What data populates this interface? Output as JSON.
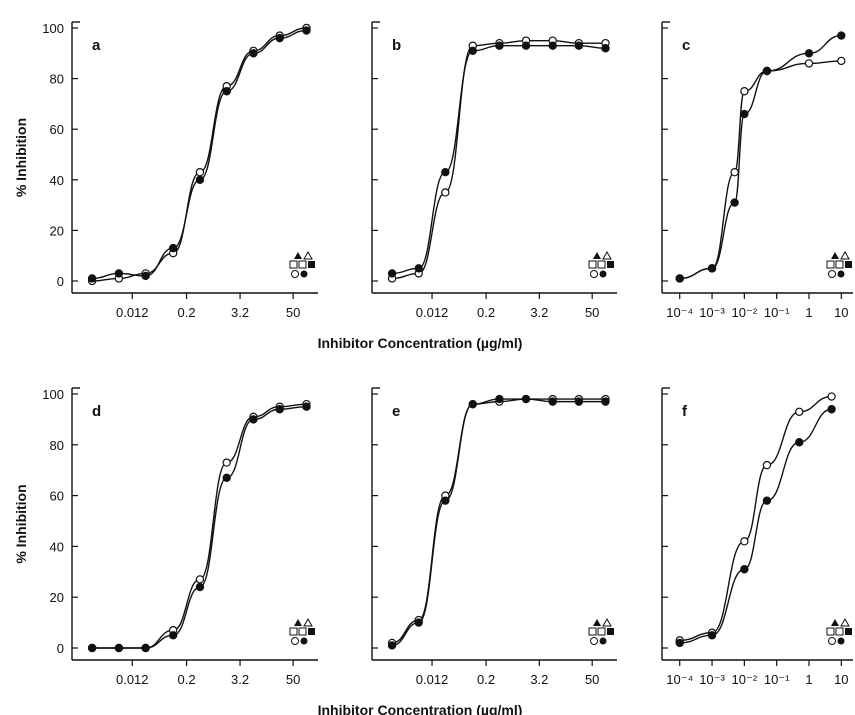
{
  "chart_data": [
    {
      "type": "line",
      "panel": "a",
      "ylabel": "% Inhibition",
      "ylim": [
        0,
        100
      ],
      "y_ticks": [
        "0",
        "20",
        "40",
        "60",
        "80",
        "100"
      ],
      "x_scale": "log",
      "x_tick_labels": [
        "0.012",
        "0.2",
        "3.2",
        "50"
      ],
      "series": [
        {
          "marker": "open-circle",
          "x": [
            0.0015,
            0.006,
            0.024,
            0.1,
            0.4,
            1.6,
            6.4,
            25,
            100
          ],
          "y": [
            0,
            1,
            3,
            11,
            43,
            77,
            91,
            97,
            100
          ]
        },
        {
          "marker": "filled-circle",
          "x": [
            0.0015,
            0.006,
            0.024,
            0.1,
            0.4,
            1.6,
            6.4,
            25,
            100
          ],
          "y": [
            1,
            3,
            2,
            13,
            40,
            75,
            90,
            96,
            99
          ]
        }
      ]
    },
    {
      "type": "line",
      "panel": "b",
      "ylim": [
        0,
        100
      ],
      "x_scale": "log",
      "x_tick_labels": [
        "0.012",
        "0.2",
        "3.2",
        "50"
      ],
      "series": [
        {
          "marker": "open-circle",
          "x": [
            0.0015,
            0.006,
            0.024,
            0.1,
            0.4,
            1.6,
            6.4,
            25,
            100
          ],
          "y": [
            1,
            3,
            35,
            93,
            94,
            95,
            95,
            94,
            94
          ]
        },
        {
          "marker": "filled-circle",
          "x": [
            0.0015,
            0.006,
            0.024,
            0.1,
            0.4,
            1.6,
            6.4,
            25,
            100
          ],
          "y": [
            3,
            5,
            43,
            91,
            93,
            93,
            93,
            93,
            92
          ]
        }
      ]
    },
    {
      "type": "line",
      "panel": "c",
      "ylim": [
        0,
        100
      ],
      "x_scale": "log",
      "x_tick_labels": [
        "10⁻⁴",
        "10⁻³",
        "10⁻²",
        "10⁻¹",
        "1",
        "10"
      ],
      "series": [
        {
          "marker": "open-circle",
          "x": [
            0.0001,
            0.001,
            0.005,
            0.01,
            0.05,
            1,
            10
          ],
          "y": [
            1,
            5,
            43,
            75,
            83,
            86,
            87
          ]
        },
        {
          "marker": "filled-circle",
          "x": [
            0.0001,
            0.001,
            0.005,
            0.01,
            0.05,
            1,
            10
          ],
          "y": [
            1,
            5,
            31,
            66,
            83,
            90,
            97
          ]
        }
      ]
    },
    {
      "type": "line",
      "panel": "d",
      "ylabel": "% Inhibition",
      "ylim": [
        0,
        100
      ],
      "y_ticks": [
        "0",
        "20",
        "40",
        "60",
        "80",
        "100"
      ],
      "x_scale": "log",
      "x_tick_labels": [
        "0.012",
        "0.2",
        "3.2",
        "50"
      ],
      "series": [
        {
          "marker": "open-circle",
          "x": [
            0.0015,
            0.006,
            0.024,
            0.1,
            0.4,
            1.6,
            6.4,
            25,
            100
          ],
          "y": [
            0,
            0,
            0,
            7,
            27,
            73,
            91,
            95,
            96
          ]
        },
        {
          "marker": "filled-circle",
          "x": [
            0.0015,
            0.006,
            0.024,
            0.1,
            0.4,
            1.6,
            6.4,
            25,
            100
          ],
          "y": [
            0,
            0,
            0,
            5,
            24,
            67,
            90,
            94,
            95
          ]
        }
      ]
    },
    {
      "type": "line",
      "panel": "e",
      "ylim": [
        0,
        100
      ],
      "x_scale": "log",
      "x_tick_labels": [
        "0.012",
        "0.2",
        "3.2",
        "50"
      ],
      "series": [
        {
          "marker": "open-circle",
          "x": [
            0.0015,
            0.006,
            0.024,
            0.1,
            0.4,
            1.6,
            6.4,
            25,
            100
          ],
          "y": [
            2,
            11,
            60,
            96,
            97,
            98,
            98,
            98,
            98
          ]
        },
        {
          "marker": "filled-circle",
          "x": [
            0.0015,
            0.006,
            0.024,
            0.1,
            0.4,
            1.6,
            6.4,
            25,
            100
          ],
          "y": [
            1,
            10,
            58,
            96,
            98,
            98,
            97,
            97,
            97
          ]
        }
      ]
    },
    {
      "type": "line",
      "panel": "f",
      "ylim": [
        0,
        100
      ],
      "x_scale": "log",
      "x_tick_labels": [
        "10⁻⁴",
        "10⁻³",
        "10⁻²",
        "10⁻¹",
        "1",
        "10"
      ],
      "series": [
        {
          "marker": "open-circle",
          "x": [
            0.0001,
            0.001,
            0.01,
            0.05,
            0.5,
            5,
            100
          ],
          "y": [
            3,
            6,
            42,
            72,
            93,
            99,
            99
          ]
        },
        {
          "marker": "filled-circle",
          "x": [
            0.0001,
            0.001,
            0.01,
            0.05,
            0.5,
            5,
            100
          ],
          "y": [
            2,
            5,
            31,
            58,
            81,
            94,
            95
          ]
        }
      ]
    }
  ],
  "shared_xlabels": [
    "Inhibitor Concentration (µg/ml)",
    "Inhibitor Concentration (µg/ml)"
  ]
}
